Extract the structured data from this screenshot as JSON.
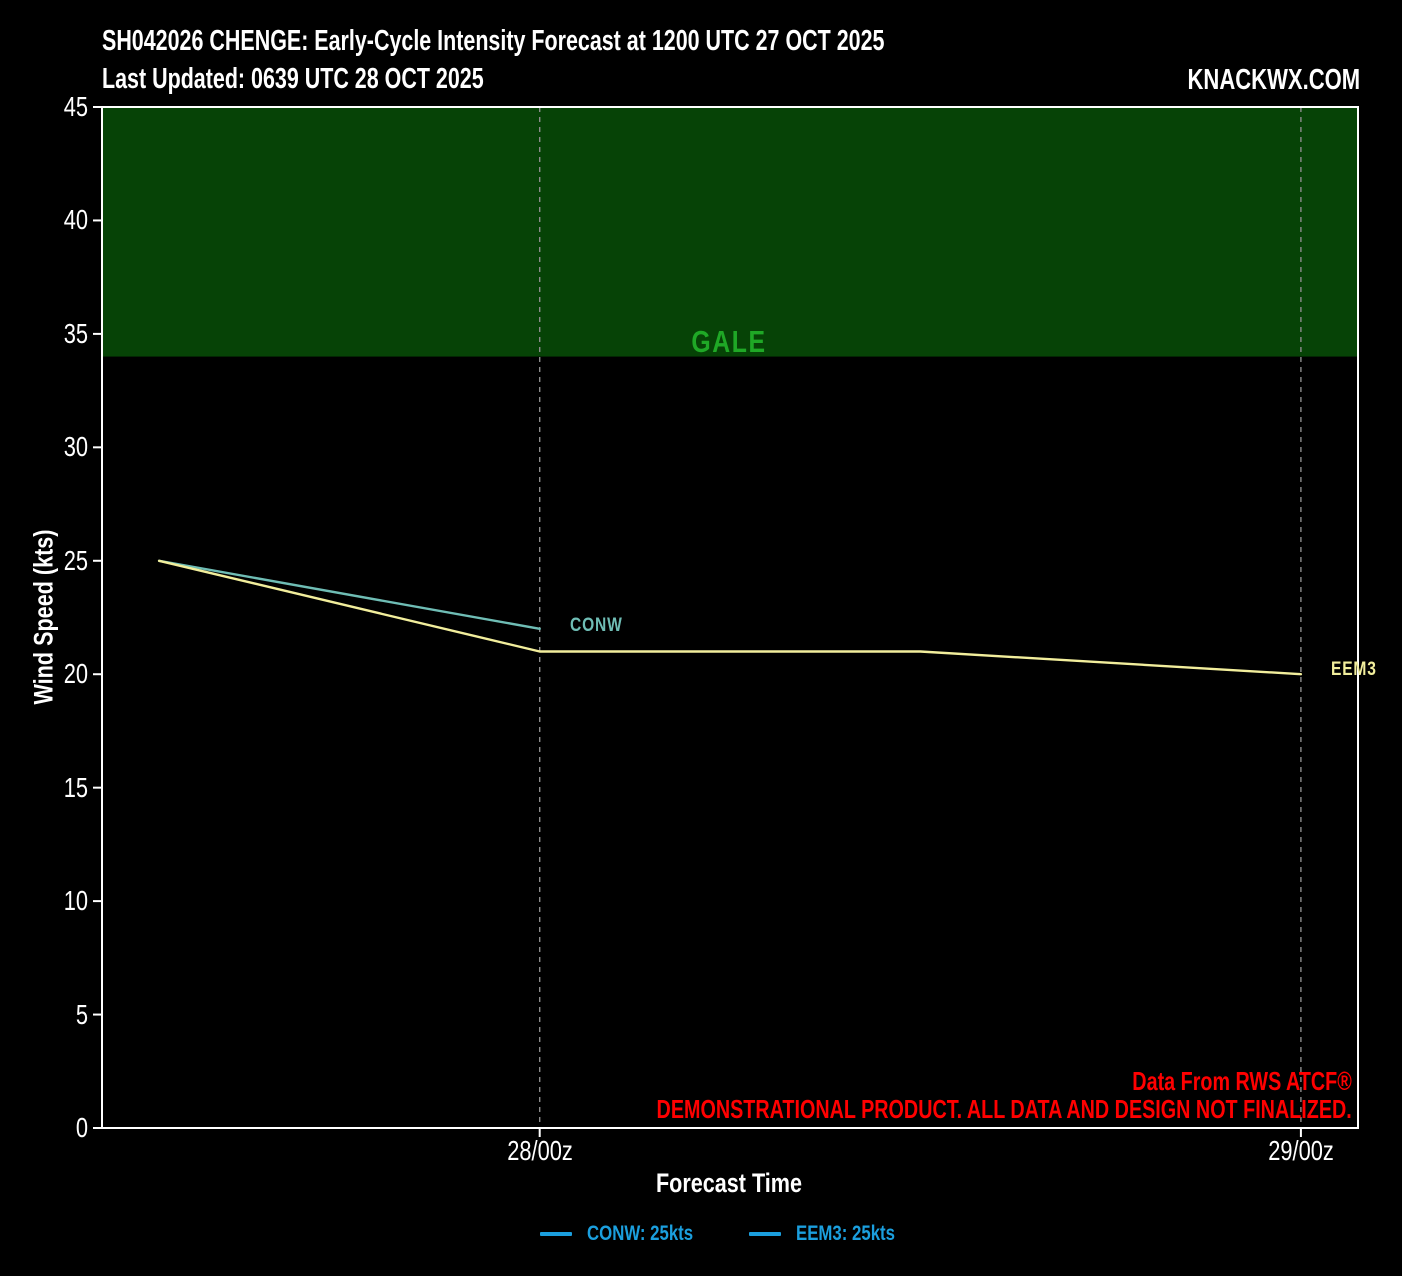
{
  "header": {
    "title_line1": "SH042026 CHENGE: Early-Cycle Intensity Forecast at 1200 UTC 27 OCT 2025",
    "title_line2": "Last Updated: 0639 UTC 28 OCT 2025",
    "brand": "KNACKWX.COM"
  },
  "chart_data": {
    "type": "line",
    "title": "SH042026 CHENGE: Early-Cycle Intensity Forecast at 1200 UTC 27 OCT 2025",
    "subtitle": "Last Updated: 0639 UTC 28 OCT 2025",
    "xlabel": "Forecast Time",
    "ylabel": "Wind Speed (kts)",
    "ylim": [
      0,
      45
    ],
    "y_ticks": [
      0,
      5,
      10,
      15,
      20,
      25,
      30,
      35,
      40,
      45
    ],
    "x_axis": {
      "unit": "hours after forecast init 27/12z",
      "domain_hours": [
        -1.8,
        37.8
      ],
      "ticks": [
        {
          "t": 12,
          "label": "28/00z"
        },
        {
          "t": 36,
          "label": "29/00z"
        }
      ],
      "gridline_style": "dashed-vertical",
      "gridline_color": "#8c8c8c"
    },
    "series": [
      {
        "name": "CONW",
        "color": "#6FBDB5",
        "end_label": "CONW",
        "points": [
          {
            "t": 0,
            "kts": 25
          },
          {
            "t": 12,
            "kts": 22
          }
        ]
      },
      {
        "name": "EEM3",
        "color": "#F2EE9C",
        "end_label": "EEM3",
        "points": [
          {
            "t": 0,
            "kts": 25
          },
          {
            "t": 12,
            "kts": 21
          },
          {
            "t": 24,
            "kts": 21
          },
          {
            "t": 36,
            "kts": 20
          }
        ]
      }
    ],
    "bands": [
      {
        "label": "GALE",
        "from_kts": 34,
        "to_kts": 45,
        "fill": "#064306",
        "label_color": "#1FA826"
      }
    ],
    "grid": "vertical dashed at x ticks only",
    "legend_position": "bottom-center"
  },
  "annotations": {
    "data_source": "Data From RWS ATCF®",
    "disclaimer": "DEMONSTRATIONAL PRODUCT. ALL DATA AND DESIGN NOT FINALIZED."
  },
  "legend": {
    "items": [
      {
        "label": "CONW: 25kts",
        "color": "#1B9FDE"
      },
      {
        "label": "EEM3: 25kts",
        "color": "#1B9FDE"
      }
    ]
  }
}
